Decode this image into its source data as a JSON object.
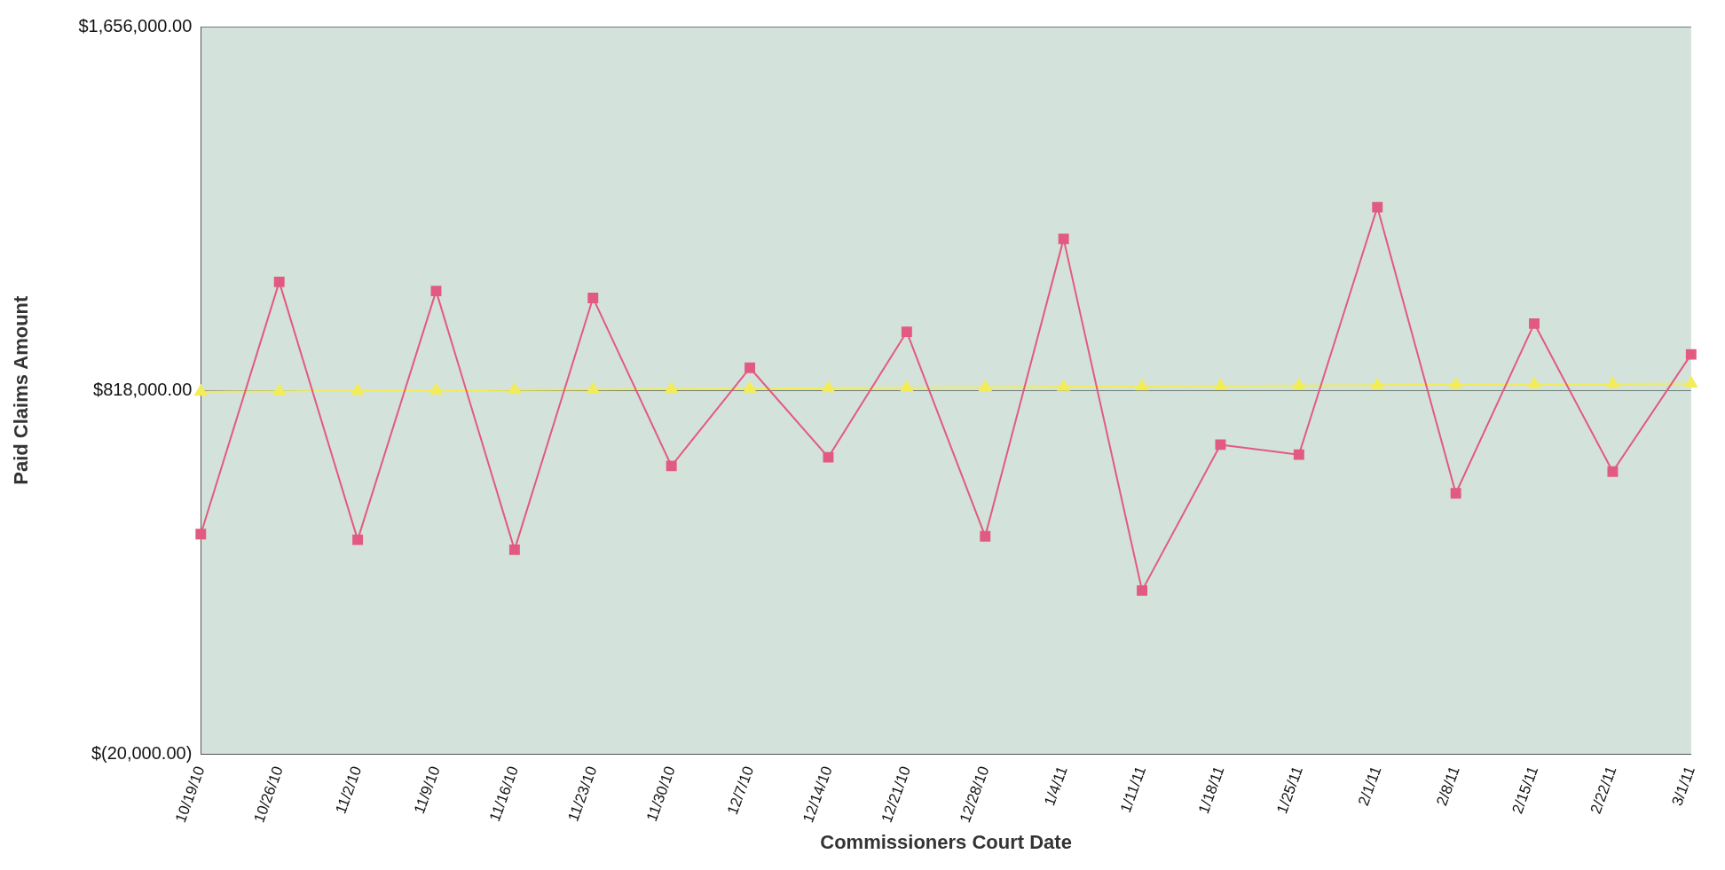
{
  "chart_data": {
    "type": "line",
    "xlabel": "Commissioners Court Date",
    "ylabel": "Paid Claims Amount",
    "categories": [
      "10/19/10",
      "10/26/10",
      "11/2/10",
      "11/9/10",
      "11/16/10",
      "11/23/10",
      "11/30/10",
      "12/7/10",
      "12/14/10",
      "12/21/10",
      "12/28/10",
      "1/4/11",
      "1/11/11",
      "1/18/11",
      "1/25/11",
      "2/1/11",
      "2/8/11",
      "2/15/11",
      "2/22/11",
      "3/1/11"
    ],
    "series": [
      {
        "color": "#e25a82",
        "marker": "square",
        "values": [
          487000,
          1068000,
          474000,
          1047000,
          451000,
          1031000,
          644000,
          870000,
          664000,
          953000,
          482000,
          1167000,
          357000,
          693000,
          670000,
          1240000,
          581000,
          972000,
          631000,
          901000
        ]
      },
      {
        "color": "#f2ec5a",
        "marker": "triangle",
        "values": [
          815000,
          816000,
          817000,
          818000,
          819000,
          820000,
          821000,
          822000,
          823000,
          824000,
          825000,
          826000,
          827000,
          828000,
          829000,
          830000,
          831000,
          832000,
          833000,
          834000
        ]
      }
    ],
    "ylim": [
      -20000,
      1656000
    ],
    "yticks": [
      {
        "value": -20000,
        "label": "$(20,000.00)"
      },
      {
        "value": 818000,
        "label": "$818,000.00"
      },
      {
        "value": 1656000,
        "label": "$1,656,000.00"
      }
    ],
    "grid": "y",
    "legend": false
  }
}
